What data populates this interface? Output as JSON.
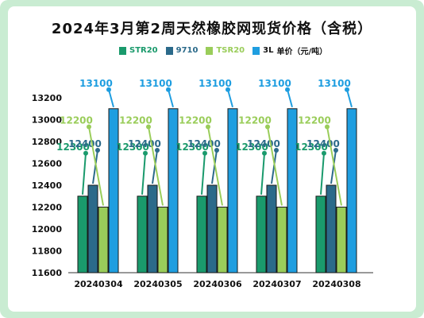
{
  "title": "2024年3月第2周天然橡胶网现货价格（含税）",
  "colors": {
    "STR20": "#1a9a6c",
    "9710": "#2b6a8a",
    "TSR20": "#9acd5a",
    "3L": "#1f9ee0",
    "frame": "#c9ecd2"
  },
  "chart_data": {
    "type": "bar",
    "categories": [
      "20240304",
      "20240305",
      "20240306",
      "20240307",
      "20240308"
    ],
    "series": [
      {
        "name": "STR20",
        "values": [
          12300,
          12300,
          12300,
          12300,
          12300
        ]
      },
      {
        "name": "9710",
        "values": [
          12400,
          12400,
          12400,
          12400,
          12400
        ]
      },
      {
        "name": "TSR20",
        "values": [
          12200,
          12200,
          12200,
          12200,
          12200
        ]
      },
      {
        "name": "3L",
        "values": [
          13100,
          13100,
          13100,
          13100,
          13100
        ]
      }
    ],
    "legend": [
      "STR20",
      "9710",
      "TSR20",
      "3L"
    ],
    "ylabel": "单价（元/吨）",
    "ylim": [
      11600,
      13200
    ],
    "yticks": [
      11600,
      11800,
      12000,
      12200,
      12400,
      12600,
      12800,
      13000,
      13200
    ],
    "grid": false,
    "legend_position": "top"
  }
}
